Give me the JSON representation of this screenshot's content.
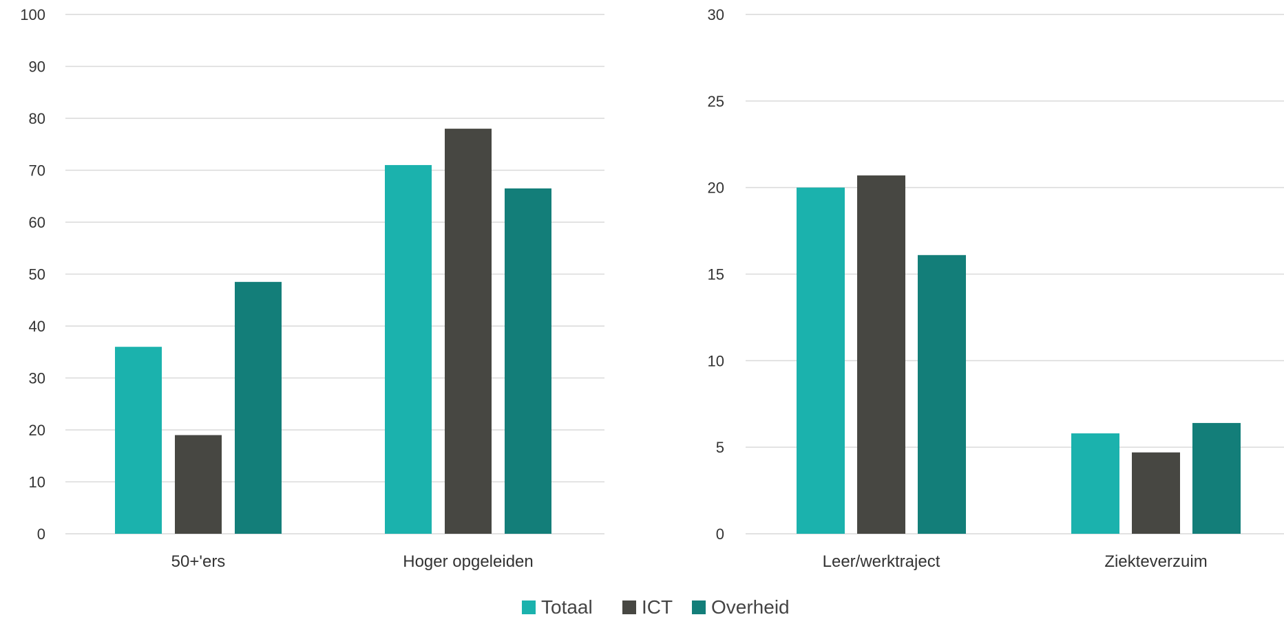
{
  "chart_data": [
    {
      "type": "bar",
      "categories": [
        "50+'ers",
        "Hoger opgeleiden"
      ],
      "series": [
        {
          "name": "Totaal",
          "values": [
            36,
            71
          ]
        },
        {
          "name": "ICT",
          "values": [
            19,
            78
          ]
        },
        {
          "name": "Overheid",
          "values": [
            48.5,
            66.5
          ]
        }
      ],
      "ylim": [
        0,
        100
      ],
      "yticks": [
        "0",
        "10",
        "20",
        "30",
        "40",
        "50",
        "60",
        "70",
        "80",
        "90",
        "100"
      ],
      "grid": true
    },
    {
      "type": "bar",
      "categories": [
        "Leer/werktraject",
        "Ziekteverzuim"
      ],
      "series": [
        {
          "name": "Totaal",
          "values": [
            20,
            5.8
          ]
        },
        {
          "name": "ICT",
          "values": [
            20.7,
            4.7
          ]
        },
        {
          "name": "Overheid",
          "values": [
            16.1,
            6.4
          ]
        }
      ],
      "ylim": [
        0,
        30
      ],
      "yticks": [
        "0",
        "5",
        "10",
        "15",
        "20",
        "25",
        "30"
      ],
      "grid": true
    }
  ],
  "legend": {
    "position": "bottom-center",
    "items": [
      {
        "name": "Totaal",
        "color": "#1bb2ad"
      },
      {
        "name": "ICT",
        "color": "#474742"
      },
      {
        "name": "Overheid",
        "color": "#137e79"
      }
    ]
  },
  "colors": {
    "Totaal": "#1bb2ad",
    "ICT": "#474742",
    "Overheid": "#137e79",
    "grid": "#d9d9d9"
  }
}
